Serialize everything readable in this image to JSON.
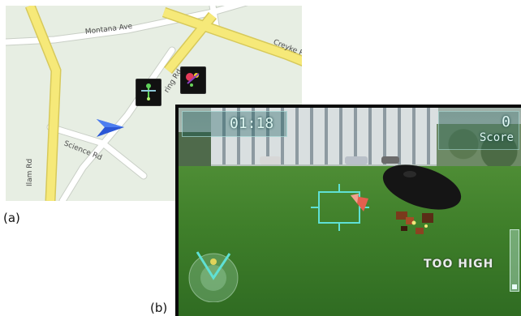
{
  "map": {
    "roads": {
      "montana": "Montana Ave",
      "creyke": "Creyke Rd",
      "spring": "ring Rd",
      "science": "Science Rd",
      "ilam": "Ilam Rd"
    },
    "colors": {
      "background": "#e7eee3",
      "major_road": "#f6e979",
      "minor_road": "#ffffff",
      "user_arrow": "#2b57d6"
    },
    "icons": [
      "navigation-arrow-icon",
      "drone-pin-icon",
      "drone-pin-icon"
    ]
  },
  "labels": {
    "a": "(a)",
    "b": "(b)"
  },
  "game": {
    "timer": "01:18",
    "score_value": "0",
    "score_label": "Score",
    "warning": "TOO HIGH",
    "colors": {
      "hud": "#5fe0d4",
      "target_marker": "#e4604e"
    }
  }
}
